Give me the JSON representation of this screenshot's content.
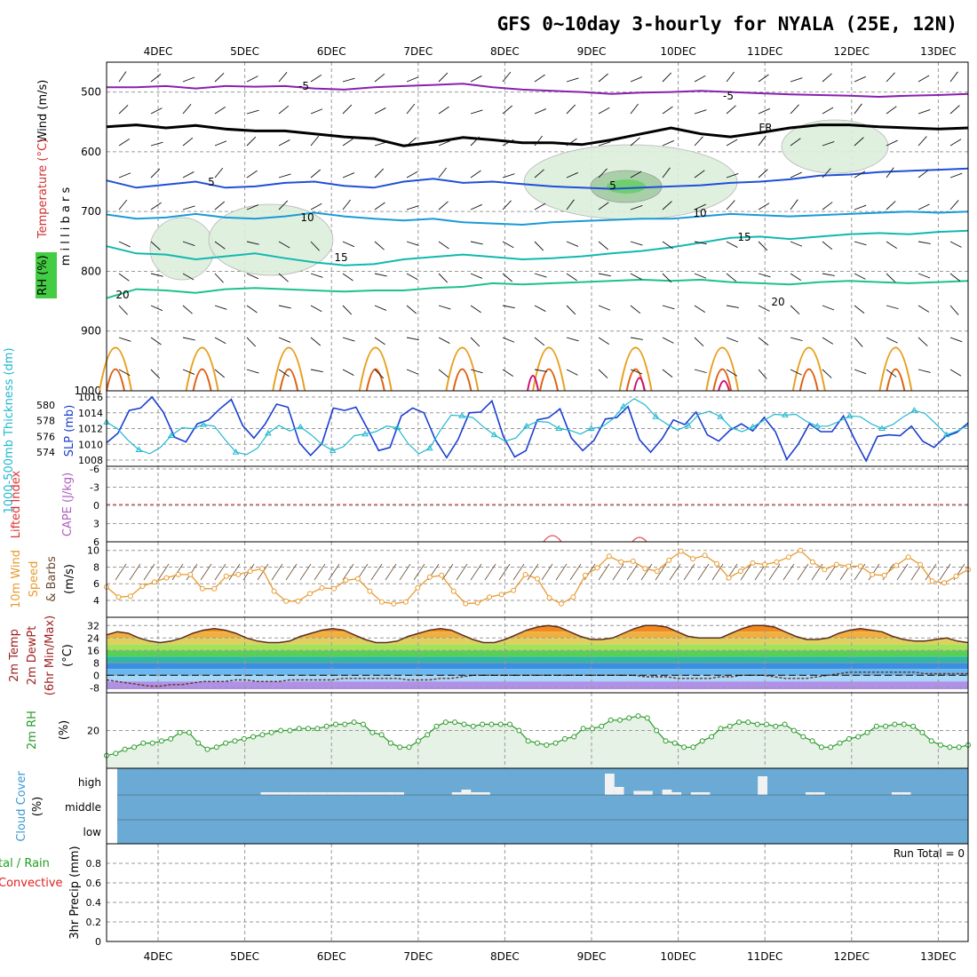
{
  "title": "GFS 0~10day 3-hourly for NYALA (25E, 12N)",
  "dates": [
    "4DEC",
    "5DEC",
    "6DEC",
    "7DEC",
    "8DEC",
    "9DEC",
    "10DEC",
    "11DEC",
    "12DEC",
    "13DEC"
  ],
  "colors": {
    "purple": "#8a1fb0",
    "black": "#000000",
    "blue": "#1f4fd6",
    "lightblue": "#1a9ad6",
    "teal": "#12b8b0",
    "green": "#1ec090",
    "orange": "#e8a020",
    "darkorange": "#e06010",
    "magenta": "#d0107a",
    "slp": "#1a3fd0",
    "thk": "#20b8d0",
    "wind": "#e89a30",
    "rhgreen": "#2a9a2a",
    "cloud": "#6aaad4"
  },
  "chart_data": [
    {
      "type": "line",
      "panel": "upper-air cross section",
      "ylabel_parts": [
        "Wind (m/s)",
        "Temperature (°C)",
        "RH (%)",
        "m i l l i b a r s"
      ],
      "yticks": [
        500,
        600,
        700,
        800,
        900,
        1000
      ],
      "ylim": [
        1000,
        450
      ],
      "contour_labels": [
        "-5",
        "-5",
        "FR",
        "5",
        "5",
        "10",
        "10",
        "15",
        "15",
        "20",
        "20"
      ],
      "series": [
        {
          "name": "-5",
          "level_hpa": [
            492,
            492,
            490,
            494,
            490,
            491,
            490,
            494,
            496,
            492,
            490,
            488,
            486,
            492,
            496,
            498,
            500,
            503,
            501,
            500,
            498,
            500,
            502,
            504,
            505,
            506,
            508,
            506,
            505,
            503
          ]
        },
        {
          "name": "FR",
          "level_hpa": [
            558,
            555,
            560,
            556,
            562,
            565,
            565,
            570,
            575,
            578,
            590,
            584,
            576,
            580,
            585,
            585,
            588,
            580,
            570,
            560,
            570,
            575,
            568,
            560,
            555,
            555,
            558,
            560,
            562,
            560
          ]
        },
        {
          "name": "5",
          "level_hpa": [
            648,
            660,
            655,
            650,
            660,
            658,
            652,
            650,
            657,
            660,
            650,
            645,
            652,
            650,
            654,
            658,
            660,
            662,
            660,
            658,
            656,
            652,
            650,
            646,
            640,
            638,
            634,
            632,
            630,
            628
          ]
        },
        {
          "name": "10",
          "level_hpa": [
            705,
            712,
            710,
            704,
            710,
            712,
            708,
            702,
            708,
            712,
            715,
            712,
            718,
            720,
            722,
            718,
            716,
            714,
            712,
            712,
            708,
            704,
            706,
            708,
            706,
            704,
            702,
            700,
            702,
            700
          ]
        },
        {
          "name": "15",
          "level_hpa": [
            758,
            770,
            772,
            780,
            775,
            770,
            778,
            785,
            790,
            788,
            780,
            776,
            772,
            776,
            780,
            778,
            775,
            770,
            766,
            760,
            752,
            744,
            742,
            746,
            742,
            738,
            736,
            738,
            734,
            732
          ]
        },
        {
          "name": "20",
          "level_hpa": [
            845,
            830,
            832,
            836,
            830,
            828,
            830,
            832,
            834,
            832,
            832,
            828,
            826,
            820,
            822,
            820,
            818,
            816,
            814,
            816,
            814,
            818,
            820,
            822,
            818,
            816,
            818,
            820,
            818,
            816
          ]
        }
      ]
    },
    {
      "type": "line",
      "panel": "SLP and thickness",
      "ylabel": "1000-500mb Thickness (dm)",
      "ylabel2": "SLP (mb)",
      "left_ticks": [
        574,
        576,
        578,
        580
      ],
      "right_ticks": [
        1008,
        1010,
        1012,
        1014,
        1016
      ],
      "series": [
        {
          "name": "SLP (mb)",
          "values": [
            1010.2,
            1011.4,
            1014.3,
            1014.6,
            1016.0,
            1014.1,
            1010.9,
            1010.3,
            1012.6,
            1013.1,
            1014.5,
            1015.7,
            1012.4,
            1010.8,
            1012.6,
            1015.1,
            1014.7,
            1010.2,
            1008.6,
            1010.1,
            1014.6,
            1014.3,
            1014.7,
            1012.0,
            1009.2,
            1009.6,
            1013.6,
            1014.6,
            1014.0,
            1010.6,
            1008.3,
            1010.6,
            1014.0,
            1014.1,
            1015.5,
            1011.0,
            1008.4,
            1009.2,
            1013.1,
            1013.4,
            1014.5,
            1010.8,
            1009.2,
            1010.5,
            1013.2,
            1013.4,
            1014.8,
            1010.6,
            1009.0,
            1010.7,
            1013.1,
            1012.5,
            1014.1,
            1011.2,
            1010.4,
            1011.8,
            1012.6,
            1011.7,
            1013.4,
            1011.6,
            1008.1,
            1010.0,
            1012.6,
            1011.6,
            1011.6,
            1013.6,
            1010.6,
            1007.9,
            1011.0,
            1011.2,
            1011.1,
            1012.3,
            1010.4,
            1009.6,
            1011.0,
            1011.5,
            1012.7
          ]
        },
        {
          "name": "Thickness (dm)",
          "values": [
            577.8,
            577.0,
            575.5,
            574.3,
            573.8,
            574.6,
            576.1,
            577.1,
            577.0,
            577.5,
            577.3,
            575.6,
            574.0,
            573.7,
            574.5,
            576.4,
            577.4,
            576.7,
            577.2,
            576.2,
            575.0,
            574.2,
            574.7,
            576.1,
            576.3,
            576.6,
            577.3,
            577.1,
            575.1,
            573.8,
            574.5,
            576.8,
            578.7,
            578.6,
            578.4,
            577.2,
            576.2,
            575.4,
            575.8,
            577.3,
            577.9,
            577.8,
            577.0,
            576.8,
            576.3,
            577.0,
            577.2,
            578.2,
            579.8,
            580.8,
            580.0,
            578.5,
            577.6,
            576.8,
            577.4,
            578.8,
            579.2,
            578.5,
            577.1,
            576.6,
            577.2,
            578.0,
            578.8,
            578.7,
            578.8,
            577.9,
            577.3,
            577.3,
            577.9,
            578.6,
            578.5,
            577.6,
            577.0,
            577.5,
            578.5,
            579.3,
            578.9,
            577.6,
            576.2,
            576.7,
            577.4
          ]
        }
      ]
    },
    {
      "type": "line",
      "panel": "stability",
      "ylabel": "Lifted Index",
      "ylabel2": "CAPE (J/kg)",
      "yticks": [
        "-6",
        "-3",
        "0",
        "3",
        "6"
      ],
      "series": [
        {
          "name": "Lifted Index",
          "values": []
        },
        {
          "name": "CAPE (J/kg)",
          "values": []
        }
      ]
    },
    {
      "type": "line",
      "panel": "10m wind",
      "ylabel": "10m Wind Speed & Barbs (m/s)",
      "yticks": [
        4,
        6,
        8,
        10
      ],
      "series": [
        {
          "name": "10m Wind Speed",
          "values": [
            5.6,
            4.4,
            4.5,
            5.7,
            6.2,
            6.7,
            7.1,
            7.1,
            5.4,
            5.4,
            6.9,
            7.1,
            7.5,
            7.8,
            5.1,
            3.9,
            3.9,
            4.8,
            5.5,
            5.4,
            6.4,
            6.6,
            5.1,
            3.8,
            3.6,
            3.8,
            5.5,
            6.8,
            7.0,
            5.1,
            3.6,
            3.7,
            4.4,
            4.7,
            5.2,
            7.1,
            6.6,
            4.3,
            3.6,
            4.4,
            7.0,
            7.9,
            9.3,
            8.6,
            8.7,
            7.8,
            7.5,
            8.8,
            9.9,
            9.0,
            9.4,
            8.4,
            6.7,
            7.5,
            8.5,
            8.3,
            8.6,
            9.2,
            10.0,
            8.6,
            7.7,
            8.3,
            8.1,
            8.1,
            7.1,
            7.0,
            8.2,
            9.2,
            8.3,
            6.3,
            6.1,
            6.9,
            7.7
          ]
        }
      ]
    },
    {
      "type": "area",
      "panel": "2m temperature",
      "ylabel": "2m Temp 2m DewPt (6hr Min/Max) (°C)",
      "yticks": [
        -8,
        0,
        8,
        16,
        24,
        32
      ],
      "series": [
        {
          "name": "2m Temp",
          "values": [
            26,
            28,
            27,
            24,
            22,
            21,
            22,
            24,
            27,
            29,
            30,
            29,
            27,
            24,
            22,
            21,
            21,
            22,
            25,
            27,
            29,
            30,
            29,
            26,
            23,
            21,
            21,
            22,
            25,
            27,
            29,
            30,
            29,
            26,
            23,
            21,
            21,
            23,
            26,
            29,
            31,
            32,
            31,
            28,
            25,
            23,
            23,
            24,
            27,
            30,
            32,
            32,
            31,
            28,
            25,
            24,
            24,
            24,
            27,
            30,
            32,
            32,
            31,
            28,
            25,
            23,
            23,
            24,
            27,
            29,
            30,
            29,
            28,
            25,
            23,
            22,
            22,
            23,
            24,
            22,
            21
          ]
        },
        {
          "name": "2m DewPt",
          "values": [
            -3,
            -4,
            -5,
            -6,
            -7,
            -7,
            -6,
            -6,
            -5,
            -4,
            -4,
            -4,
            -3,
            -3,
            -4,
            -4,
            -4,
            -3,
            -3,
            -3,
            -3,
            -3,
            -2,
            -2,
            -2,
            -2,
            -2,
            -2,
            -3,
            -3,
            -3,
            -2,
            -2,
            -1,
            0,
            0,
            0,
            0,
            0,
            0,
            0,
            0,
            0,
            0,
            0,
            0,
            0,
            0,
            0,
            0,
            -1,
            -1,
            -1,
            -2,
            -2,
            -2,
            -2,
            -1,
            -1,
            0,
            0,
            0,
            -1,
            -2,
            -2,
            -2,
            -1,
            0,
            1,
            2,
            2,
            2,
            2,
            2,
            2,
            2,
            1,
            1,
            1,
            1,
            1
          ]
        }
      ]
    },
    {
      "type": "area",
      "panel": "2m relative humidity",
      "ylabel": "2m RH (%)",
      "yticks": [
        20
      ],
      "series": [
        {
          "name": "2m RH",
          "values": [
            8,
            9,
            11,
            12,
            14,
            14,
            15,
            16,
            19,
            19,
            14,
            11,
            12,
            14,
            15,
            16,
            17,
            18,
            19,
            20,
            20,
            21,
            21,
            21,
            22,
            23,
            23,
            24,
            23,
            19,
            18,
            14,
            12,
            12,
            15,
            18,
            22,
            24,
            24,
            23,
            22,
            23,
            23,
            23,
            23,
            20,
            15,
            14,
            13,
            14,
            16,
            17,
            21,
            21,
            22,
            25,
            25,
            26,
            27,
            26,
            20,
            15,
            14,
            12,
            12,
            15,
            17,
            21,
            22,
            24,
            24,
            23,
            23,
            22,
            23,
            20,
            17,
            15,
            12,
            12,
            14,
            16,
            17,
            19,
            22,
            22,
            23,
            23,
            22,
            19,
            15,
            13,
            12,
            12,
            13
          ]
        }
      ]
    },
    {
      "type": "bar",
      "panel": "cloud cover",
      "ylabel": "Cloud Cover (%)",
      "layers": [
        "high",
        "middle",
        "low"
      ],
      "series": [
        {
          "name": "high",
          "values": [
            0,
            0,
            0,
            0,
            0,
            0,
            0,
            0,
            0,
            0,
            0,
            0,
            0,
            0,
            0,
            10,
            10,
            10,
            10,
            10,
            10,
            10,
            10,
            10,
            10,
            10,
            10,
            10,
            10,
            10,
            0,
            0,
            0,
            0,
            0,
            10,
            20,
            10,
            10,
            0,
            0,
            0,
            0,
            0,
            0,
            0,
            0,
            0,
            0,
            0,
            0,
            80,
            30,
            0,
            15,
            15,
            0,
            20,
            10,
            0,
            10,
            10,
            0,
            0,
            0,
            0,
            0,
            70,
            0,
            0,
            0,
            0,
            10,
            10,
            0,
            0,
            0,
            0,
            0,
            0,
            0,
            10,
            10,
            0,
            0,
            0,
            0,
            0,
            0
          ]
        }
      ]
    },
    {
      "type": "bar",
      "panel": "precipitation",
      "ylabel": "3hr Precip (mm)",
      "ylabel2": "Total / Rain / Convective",
      "yticks": [
        "0",
        "0.2",
        "0.4",
        "0.6",
        "0.8"
      ],
      "annotation": "Run Total = 0",
      "series": [
        {
          "name": "3hr Precip",
          "values": []
        }
      ]
    }
  ]
}
